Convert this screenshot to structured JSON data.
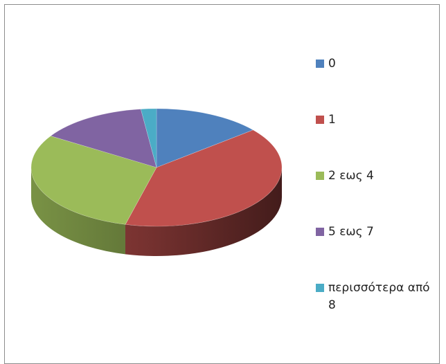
{
  "chart_data": {
    "type": "pie",
    "style": "3d",
    "title": "",
    "categories": [
      "0",
      "1",
      "2 εως 4",
      "5 εως 7",
      "περισσότερα από 8"
    ],
    "values": [
      14,
      40,
      30,
      14,
      2
    ],
    "colors": [
      "#4f81bd",
      "#c0504d",
      "#9bbb59",
      "#8064a2",
      "#4bacc6"
    ],
    "legend_position": "right"
  }
}
